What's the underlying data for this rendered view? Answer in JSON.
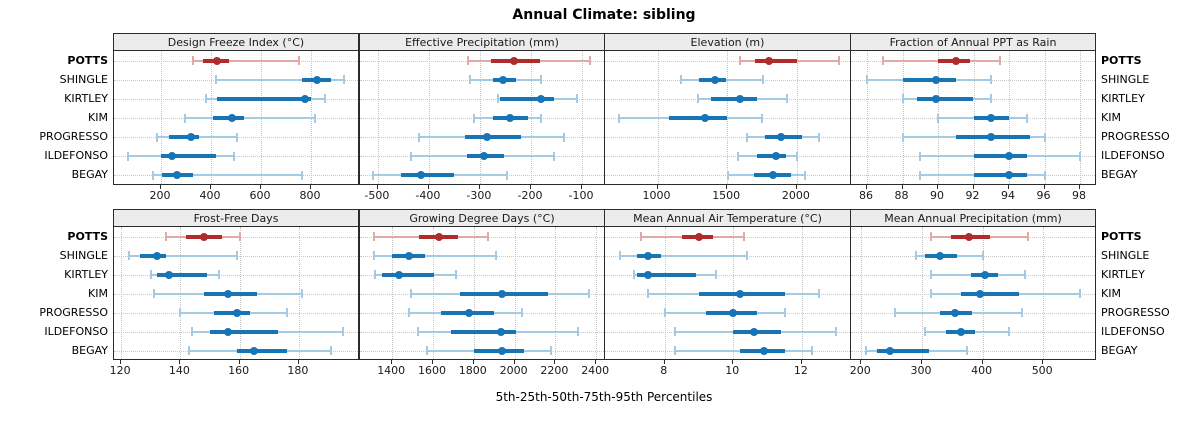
{
  "title": "Annual Climate: sibling",
  "footer": "5th-25th-50th-75th-95th Percentiles",
  "sites": [
    "POTTS",
    "SHINGLE",
    "KIRTLEY",
    "KIM",
    "PROGRESSO",
    "ILDEFONSO",
    "BEGAY"
  ],
  "highlight_site": "POTTS",
  "colors": {
    "highlight": "#b02b2b",
    "highlight_light": "#e3a9a7",
    "normal": "#1774b5",
    "normal_light": "#a5cbe4",
    "strip_bg": "#ececec",
    "grid": "#c6c6c6",
    "frame": "#2b2b2b"
  },
  "chart_data": {
    "type": "table",
    "subtype": "percentile-interval-dotplot",
    "percentiles": [
      "5th",
      "25th",
      "50th",
      "75th",
      "95th"
    ],
    "layout": "2 rows x 4 columns, shared site rows; POTTS highlighted red; others blue",
    "panels": [
      {
        "title": "Design Freeze Index (°C)",
        "row": 0,
        "col": 0,
        "ticks": [
          200,
          400,
          600,
          800
        ],
        "xlim": [
          12,
          992
        ],
        "series": {
          "POTTS": [
            328,
            369,
            424,
            472,
            752
          ],
          "SHINGLE": [
            419,
            765,
            825,
            878,
            930
          ],
          "KIRTLEY": [
            380,
            425,
            775,
            800,
            855
          ],
          "KIM": [
            296,
            408,
            483,
            532,
            816
          ],
          "PROGRESSO": [
            185,
            232,
            321,
            352,
            505
          ],
          "ILDEFONSO": [
            68,
            200,
            244,
            420,
            490
          ],
          "BEGAY": [
            168,
            205,
            265,
            328,
            765
          ]
        }
      },
      {
        "title": "Effective Precipitation (mm)",
        "row": 0,
        "col": 1,
        "ticks": [
          -500,
          -400,
          -300,
          -200,
          -100
        ],
        "xlim": [
          -535,
          -55
        ],
        "series": {
          "POTTS": [
            -323,
            -278,
            -234,
            -183,
            -85
          ],
          "SHINGLE": [
            -319,
            -275,
            -254,
            -230,
            -180
          ],
          "KIRTLEY": [
            -265,
            -260,
            -180,
            -155,
            -110
          ],
          "KIM": [
            -311,
            -275,
            -242,
            -206,
            -180
          ],
          "PROGRESSO": [
            -420,
            -330,
            -286,
            -220,
            -136
          ],
          "ILDEFONSO": [
            -435,
            -325,
            -293,
            -252,
            -155
          ],
          "BEGAY": [
            -510,
            -455,
            -415,
            -350,
            -247
          ]
        }
      },
      {
        "title": "Elevation (m)",
        "row": 0,
        "col": 2,
        "ticks": [
          1000,
          1500,
          2000
        ],
        "xlim": [
          623,
          2388
        ],
        "series": {
          "POTTS": [
            1590,
            1700,
            1800,
            2000,
            2300
          ],
          "SHINGLE": [
            1170,
            1300,
            1415,
            1490,
            1755
          ],
          "KIRTLEY": [
            1290,
            1380,
            1590,
            1715,
            1930
          ],
          "KIM": [
            725,
            1080,
            1340,
            1500,
            1750
          ],
          "PROGRESSO": [
            1640,
            1770,
            1885,
            2040,
            2155
          ],
          "ILDEFONSO": [
            1580,
            1715,
            1850,
            1920,
            2000
          ],
          "BEGAY": [
            1505,
            1690,
            1830,
            1955,
            2060
          ]
        }
      },
      {
        "title": "Fraction of Annual PPT as Rain",
        "row": 0,
        "col": 3,
        "ticks": [
          86,
          88,
          90,
          92,
          94,
          96,
          98
        ],
        "xlim": [
          85.1,
          98.9
        ],
        "series": {
          "POTTS": [
            86.9,
            90.0,
            91.0,
            91.8,
            93.5
          ],
          "SHINGLE": [
            86.0,
            88.0,
            89.9,
            91.0,
            93.0
          ],
          "KIRTLEY": [
            88.0,
            88.8,
            89.9,
            92.0,
            93.0
          ],
          "KIM": [
            90.0,
            92.0,
            93.0,
            94.0,
            95.0
          ],
          "PROGRESSO": [
            88.0,
            91.0,
            93.0,
            95.2,
            96.0
          ],
          "ILDEFONSO": [
            89.0,
            92.0,
            94.0,
            95.0,
            98.0
          ],
          "BEGAY": [
            89.0,
            92.0,
            94.0,
            95.0,
            96.0
          ]
        }
      },
      {
        "title": "Frost-Free Days",
        "row": 1,
        "col": 0,
        "ticks": [
          120,
          140,
          160,
          180
        ],
        "xlim": [
          117.6,
          200.3
        ],
        "series": {
          "POTTS": [
            135,
            142,
            148,
            154,
            160
          ],
          "SHINGLE": [
            122.5,
            126.5,
            132,
            135,
            159
          ],
          "KIRTLEY": [
            130,
            132,
            136,
            149,
            153
          ],
          "KIM": [
            131,
            148,
            156,
            166,
            181
          ],
          "PROGRESSO": [
            140,
            151.5,
            159,
            163.5,
            176
          ],
          "ILDEFONSO": [
            144,
            150,
            156,
            173,
            195
          ],
          "BEGAY": [
            143,
            159,
            165,
            176,
            191
          ]
        }
      },
      {
        "title": "Growing Degree Days (°C)",
        "row": 1,
        "col": 1,
        "ticks": [
          1400,
          1600,
          1800,
          2000,
          2200,
          2400
        ],
        "xlim": [
          1242,
          2443
        ],
        "series": {
          "POTTS": [
            1310,
            1530,
            1630,
            1720,
            1870
          ],
          "SHINGLE": [
            1310,
            1400,
            1480,
            1560,
            1910
          ],
          "KIRTLEY": [
            1315,
            1350,
            1433,
            1604,
            1710
          ],
          "KIM": [
            1490,
            1730,
            1940,
            2165,
            2365
          ],
          "PROGRESSO": [
            1480,
            1640,
            1775,
            1900,
            2035
          ],
          "ILDEFONSO": [
            1525,
            1690,
            1935,
            2005,
            2310
          ],
          "BEGAY": [
            1570,
            1800,
            1940,
            2045,
            2180
          ]
        }
      },
      {
        "title": "Mean Annual Air Temperature (°C)",
        "row": 1,
        "col": 2,
        "ticks": [
          8,
          10,
          12
        ],
        "xlim": [
          6.26,
          13.43
        ],
        "series": {
          "POTTS": [
            7.3,
            8.5,
            9.0,
            9.4,
            10.3
          ],
          "SHINGLE": [
            6.7,
            7.2,
            7.5,
            7.9,
            10.4
          ],
          "KIRTLEY": [
            7.1,
            7.2,
            7.5,
            8.9,
            9.5
          ],
          "KIM": [
            7.5,
            9.0,
            10.2,
            11.5,
            12.5
          ],
          "PROGRESSO": [
            8.0,
            9.2,
            10.0,
            10.7,
            11.5
          ],
          "ILDEFONSO": [
            8.3,
            10.0,
            10.6,
            11.4,
            13.0
          ],
          "BEGAY": [
            8.3,
            10.2,
            10.9,
            11.5,
            12.3
          ]
        }
      },
      {
        "title": "Mean Annual Precipitation (mm)",
        "row": 1,
        "col": 3,
        "ticks": [
          200,
          300,
          400,
          500
        ],
        "xlim": [
          183,
          587
        ],
        "series": {
          "POTTS": [
            315,
            347,
            378,
            412,
            475
          ],
          "SHINGLE": [
            290,
            305,
            330,
            357,
            400
          ],
          "KIRTLEY": [
            315,
            380,
            404,
            426,
            470
          ],
          "KIM": [
            315,
            365,
            396,
            460,
            560
          ],
          "PROGRESSO": [
            255,
            330,
            354,
            382,
            465
          ],
          "ILDEFONSO": [
            305,
            340,
            365,
            388,
            443
          ],
          "BEGAY": [
            207,
            226,
            248,
            311,
            374
          ]
        }
      }
    ]
  }
}
